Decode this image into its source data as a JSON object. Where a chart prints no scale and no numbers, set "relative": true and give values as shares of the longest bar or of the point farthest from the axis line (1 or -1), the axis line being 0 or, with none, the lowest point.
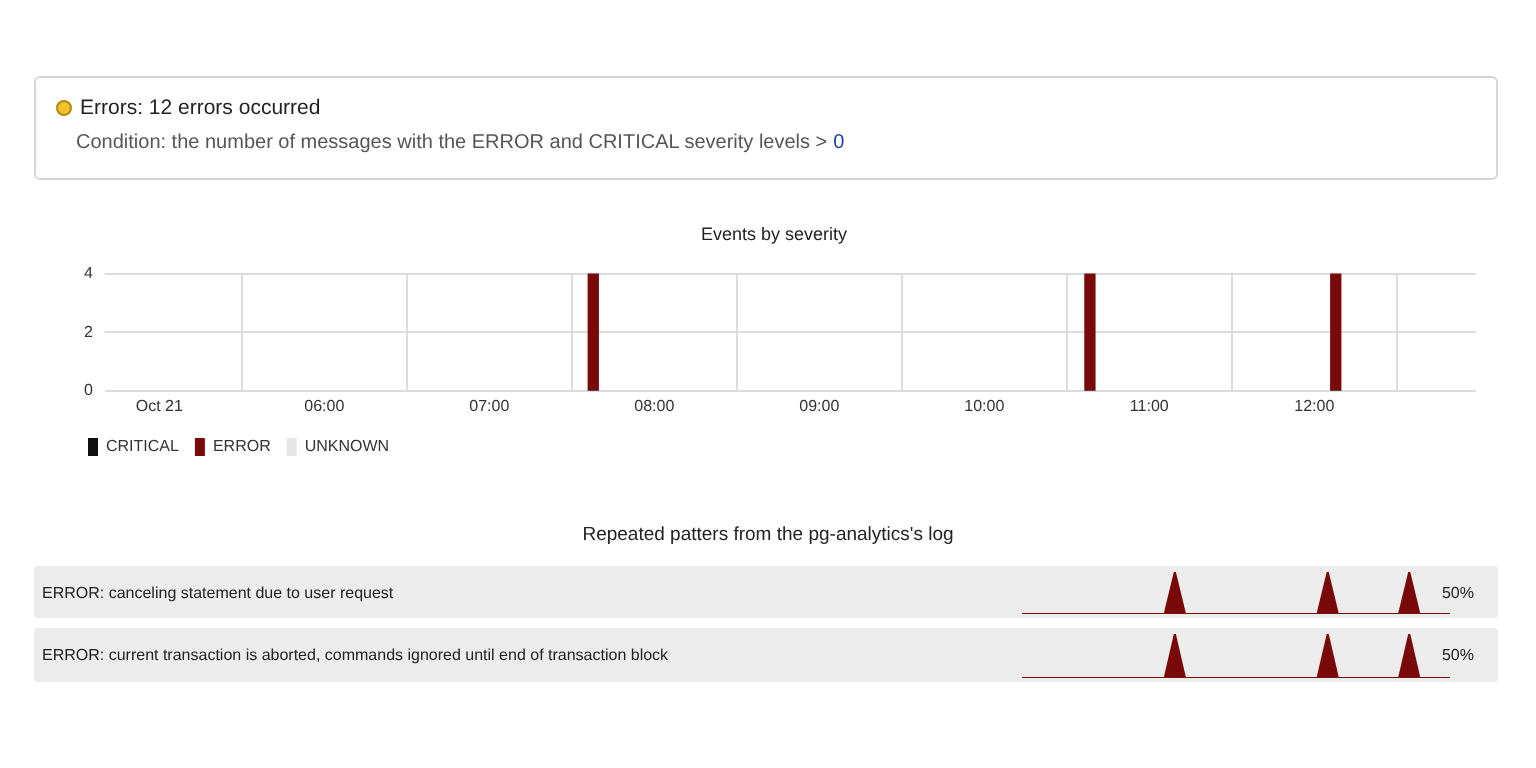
{
  "chart_data": [
    {
      "type": "other",
      "title": "Errors: 12 errors occurred",
      "annotations": [
        "Condition: the number of messages with the ERROR and CRITICAL severity levels >",
        "0"
      ]
    },
    {
      "type": "bar",
      "title": "Events by severity",
      "stacked": true,
      "x": [
        7.63,
        10.64,
        12.13
      ],
      "xlim": [
        4.67,
        12.98
      ],
      "xticks": [
        {
          "value": 5,
          "label": "Oct 21"
        },
        {
          "value": 6,
          "label": "06:00"
        },
        {
          "value": 7,
          "label": "07:00"
        },
        {
          "value": 8,
          "label": "08:00"
        },
        {
          "value": 9,
          "label": "09:00"
        },
        {
          "value": 10,
          "label": "10:00"
        },
        {
          "value": 11,
          "label": "11:00"
        },
        {
          "value": 12,
          "label": "12:00"
        }
      ],
      "ylim": [
        0,
        4
      ],
      "yticks": [
        0,
        2,
        4
      ],
      "grid": true,
      "legend": "bottom left",
      "series": [
        {
          "name": "CRITICAL",
          "color": "#111111",
          "values": [
            0,
            0,
            0
          ]
        },
        {
          "name": "ERROR",
          "color": "#7a0a0a",
          "values": [
            4,
            4,
            4
          ]
        },
        {
          "name": "UNKNOWN",
          "color": "#e6e6e6",
          "values": [
            0,
            0,
            0
          ]
        }
      ]
    },
    {
      "type": "other",
      "title": "Repeated patters from the pg-analytics's log"
    },
    {
      "type": "area",
      "relative": true,
      "color": "#7a0a0a",
      "categories": [
        null,
        null,
        null,
        null,
        null,
        null,
        null,
        null,
        null,
        null,
        null,
        null,
        null,
        null,
        null,
        null,
        null,
        null,
        null,
        null,
        null,
        null,
        null,
        null,
        null,
        null,
        null,
        null,
        null,
        null,
        null,
        null,
        null,
        null,
        null,
        null,
        null,
        null,
        null,
        null,
        null,
        null,
        null
      ],
      "values": [
        0,
        0,
        0,
        0,
        0,
        0,
        0,
        0,
        0,
        0,
        0,
        0,
        0,
        0,
        0,
        1,
        0,
        0,
        0,
        0,
        0,
        0,
        0,
        0,
        0,
        0,
        0,
        0,
        0,
        0,
        1,
        0,
        0,
        0,
        0,
        0,
        0,
        0,
        1,
        0,
        0,
        0,
        0
      ],
      "annotations": [
        "ERROR: canceling statement due to user request",
        "50%"
      ]
    },
    {
      "type": "area",
      "relative": true,
      "color": "#7a0a0a",
      "categories": [
        null,
        null,
        null,
        null,
        null,
        null,
        null,
        null,
        null,
        null,
        null,
        null,
        null,
        null,
        null,
        null,
        null,
        null,
        null,
        null,
        null,
        null,
        null,
        null,
        null,
        null,
        null,
        null,
        null,
        null,
        null,
        null,
        null,
        null,
        null,
        null,
        null,
        null,
        null,
        null,
        null,
        null,
        null
      ],
      "values": [
        0,
        0,
        0,
        0,
        0,
        0,
        0,
        0,
        0,
        0,
        0,
        0,
        0,
        0,
        0,
        1,
        0,
        0,
        0,
        0,
        0,
        0,
        0,
        0,
        0,
        0,
        0,
        0,
        0,
        0,
        1,
        0,
        0,
        0,
        0,
        0,
        0,
        0,
        1,
        0,
        0,
        0,
        0
      ],
      "annotations": [
        "ERROR: current transaction is aborted, commands ignored until end of transaction block",
        "50%"
      ]
    }
  ]
}
